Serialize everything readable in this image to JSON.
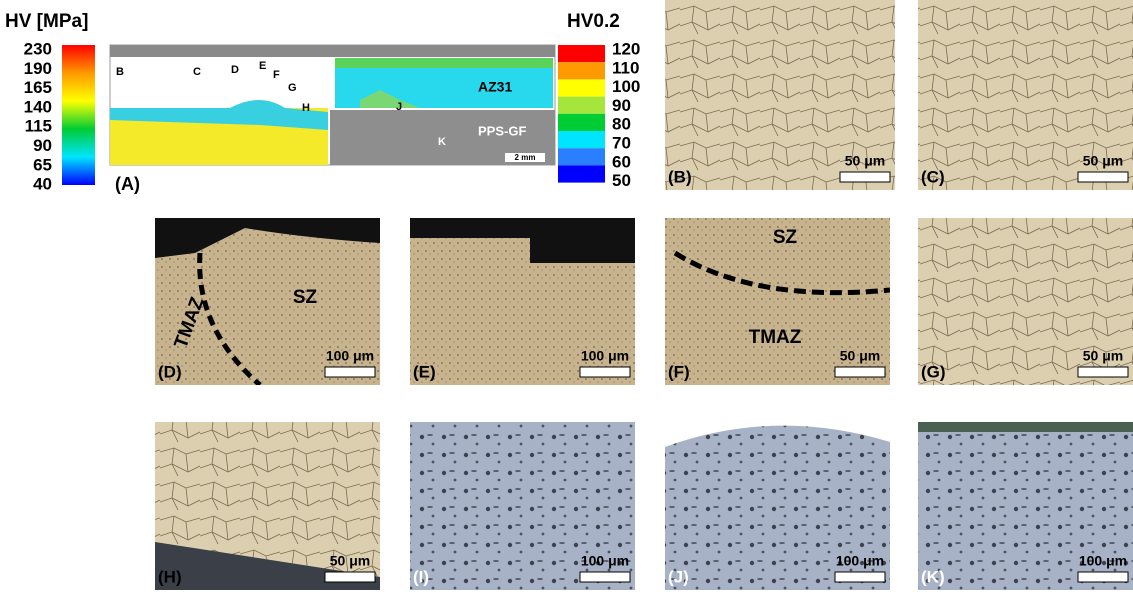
{
  "left_scale": {
    "title": "HV [MPa]",
    "ticks": [
      230,
      190,
      165,
      140,
      115,
      90,
      65,
      40
    ]
  },
  "right_scale": {
    "title": "HV0.2",
    "ticks": [
      120,
      110,
      100,
      90,
      80,
      70,
      60,
      50
    ]
  },
  "cross_section": {
    "label": "(A)",
    "points": [
      "B",
      "C",
      "D",
      "E",
      "F",
      "G",
      "H",
      "J",
      "K"
    ],
    "top_material": "AZ31",
    "bottom_material": "PPS-GF",
    "scale_bar": "2 mm"
  },
  "panels": [
    {
      "label": "(B)",
      "scale_bar": "50 μm",
      "annotations": []
    },
    {
      "label": "(C)",
      "scale_bar": "50 μm",
      "annotations": []
    },
    {
      "label": "(D)",
      "scale_bar": "100 μm",
      "annotations": [
        "SZ",
        "TMAZ"
      ]
    },
    {
      "label": "(E)",
      "scale_bar": "100 μm",
      "annotations": []
    },
    {
      "label": "(F)",
      "scale_bar": "50 μm",
      "annotations": [
        "SZ",
        "TMAZ"
      ]
    },
    {
      "label": "(G)",
      "scale_bar": "50 μm",
      "annotations": []
    },
    {
      "label": "(H)",
      "scale_bar": "50 μm",
      "annotations": []
    },
    {
      "label": "(I)",
      "scale_bar": "100 μm",
      "annotations": []
    },
    {
      "label": "(J)",
      "scale_bar": "100 μm",
      "annotations": []
    },
    {
      "label": "(K)",
      "scale_bar": "100 μm",
      "annotations": []
    }
  ]
}
